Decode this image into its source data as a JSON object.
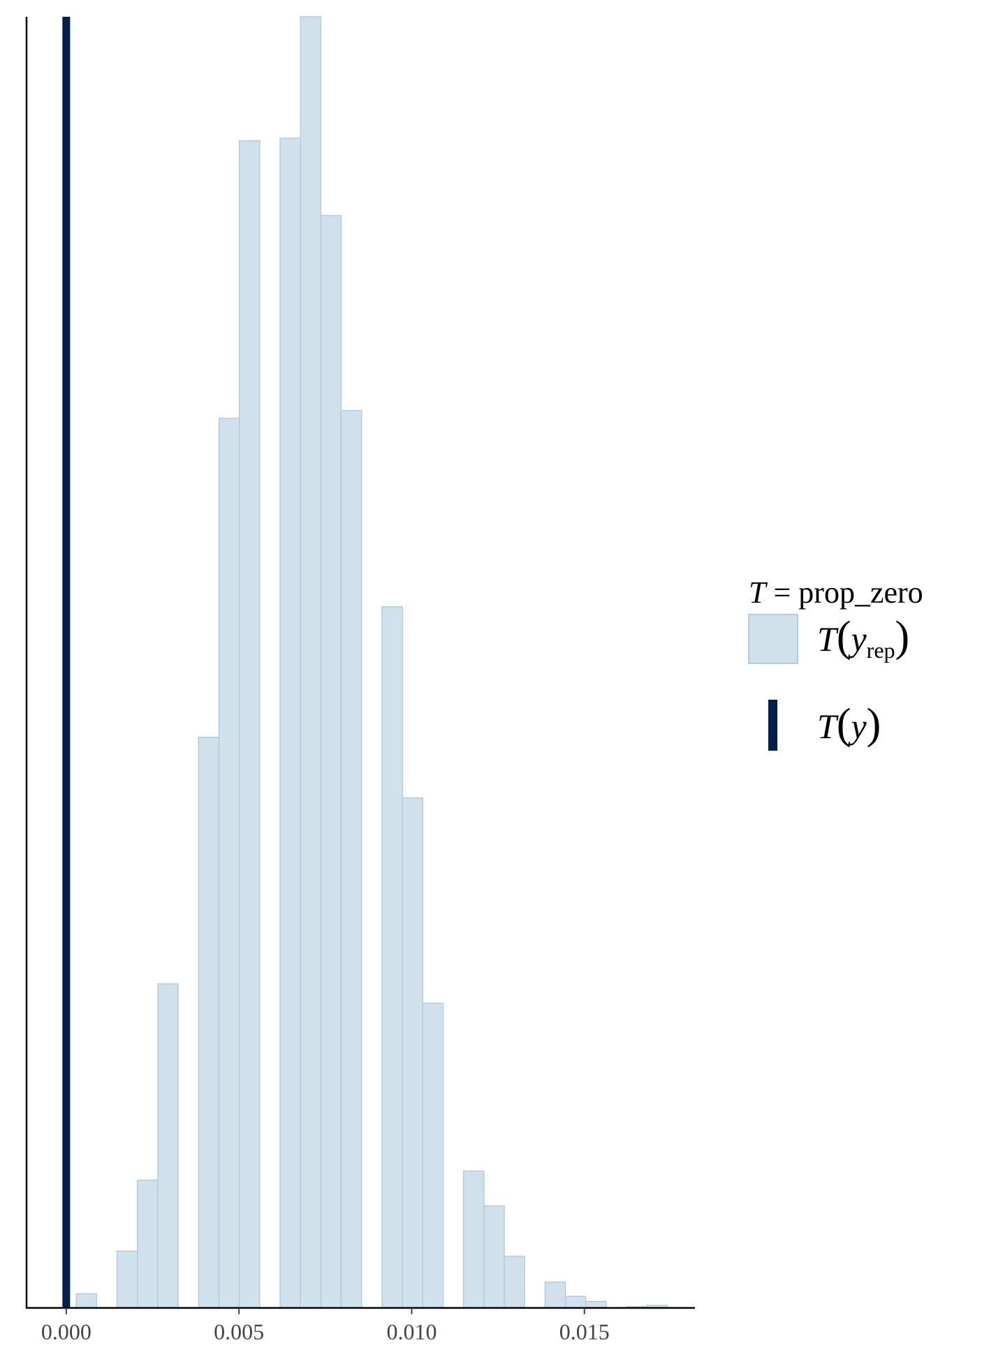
{
  "chart_data": {
    "type": "bar",
    "subtype": "histogram",
    "colors": {
      "bar_fill": "#d1e1ec",
      "bar_stroke": "#b3cde0",
      "observed_line": "#011f4b",
      "axis": "#000000",
      "tick_text": "#444444"
    },
    "xlim": [
      -0.00115,
      0.0182
    ],
    "ylim": [
      0,
      100
    ],
    "y_axis_labels": "hidden",
    "grid": false,
    "x_ticks": [
      {
        "value": 0.0,
        "label": "0.000"
      },
      {
        "value": 0.005,
        "label": "0.005"
      },
      {
        "value": 0.01,
        "label": "0.010"
      },
      {
        "value": 0.015,
        "label": "0.015"
      }
    ],
    "bins": [
      {
        "x0": 0.00029,
        "x1": 0.00088,
        "count": 1.1
      },
      {
        "x0": 0.00147,
        "x1": 0.00206,
        "count": 4.4
      },
      {
        "x0": 0.00206,
        "x1": 0.00265,
        "count": 9.9
      },
      {
        "x0": 0.00265,
        "x1": 0.00324,
        "count": 25.1
      },
      {
        "x0": 0.00383,
        "x1": 0.00442,
        "count": 44.2
      },
      {
        "x0": 0.00442,
        "x1": 0.00501,
        "count": 68.9
      },
      {
        "x0": 0.00501,
        "x1": 0.0056,
        "count": 90.4
      },
      {
        "x0": 0.00619,
        "x1": 0.00678,
        "count": 90.6
      },
      {
        "x0": 0.00678,
        "x1": 0.00737,
        "count": 100.0
      },
      {
        "x0": 0.00737,
        "x1": 0.00796,
        "count": 84.6
      },
      {
        "x0": 0.00796,
        "x1": 0.00855,
        "count": 69.5
      },
      {
        "x0": 0.00914,
        "x1": 0.00973,
        "count": 54.3
      },
      {
        "x0": 0.00973,
        "x1": 0.01032,
        "count": 39.5
      },
      {
        "x0": 0.01032,
        "x1": 0.01091,
        "count": 23.6
      },
      {
        "x0": 0.0115,
        "x1": 0.01209,
        "count": 10.6
      },
      {
        "x0": 0.01209,
        "x1": 0.01268,
        "count": 7.9
      },
      {
        "x0": 0.01268,
        "x1": 0.01327,
        "count": 4.0
      },
      {
        "x0": 0.01386,
        "x1": 0.01445,
        "count": 2.0
      },
      {
        "x0": 0.01445,
        "x1": 0.01504,
        "count": 0.9
      },
      {
        "x0": 0.01504,
        "x1": 0.01563,
        "count": 0.5
      },
      {
        "x0": 0.01622,
        "x1": 0.01681,
        "count": 0.1
      },
      {
        "x0": 0.01681,
        "x1": 0.0174,
        "count": 0.2
      }
    ],
    "observed_value": 0.0,
    "legend": {
      "title_italic": "T",
      "title_rest": " = prop_zero",
      "rep_main": "T",
      "rep_sub_var": "y",
      "rep_sub": "rep",
      "obs_main": "T",
      "obs_var": "y",
      "placement": "right"
    }
  }
}
